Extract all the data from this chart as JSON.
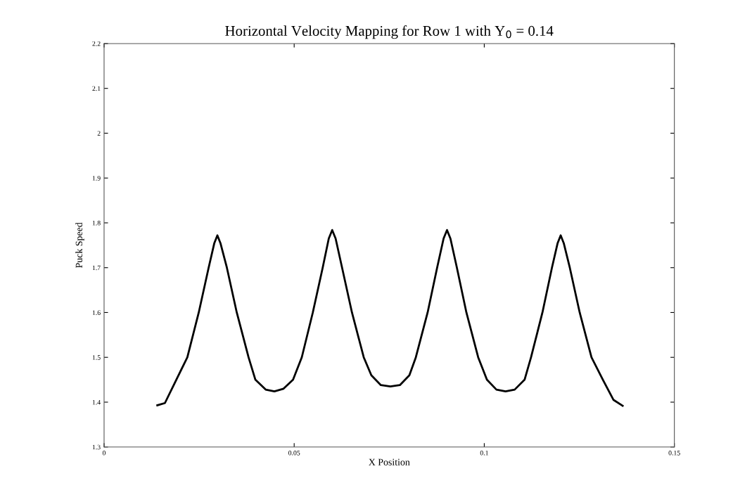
{
  "chart_data": {
    "type": "line",
    "title": "Horizontal Velocity Mapping for Row 1 with Y$_{0}$ = 0.14",
    "xlabel": "X Position",
    "ylabel": "Puck Speed",
    "xlim": [
      0,
      0.15
    ],
    "xticks": [
      0,
      0.05,
      0.1,
      0.15
    ],
    "ylim": [
      1.3,
      2.2
    ],
    "yticks": [
      1.3,
      1.4,
      1.5,
      1.6,
      1.7,
      1.8,
      1.9,
      2,
      2.1,
      2.2
    ],
    "grid": false,
    "marker": "none",
    "line_style": "solid",
    "series": [
      {
        "color": "#000000",
        "x": [
          0.014,
          0.016,
          0.019,
          0.0219,
          0.0249,
          0.0275,
          0.029,
          0.0298,
          0.0306,
          0.0323,
          0.0349,
          0.038,
          0.0398,
          0.0425,
          0.0448,
          0.0472,
          0.0497,
          0.052,
          0.0549,
          0.0575,
          0.0591,
          0.06,
          0.0609,
          0.0626,
          0.0652,
          0.0683,
          0.0703,
          0.0728,
          0.0753,
          0.0778,
          0.0803,
          0.082,
          0.0851,
          0.0876,
          0.0893,
          0.0902,
          0.0911,
          0.0928,
          0.0953,
          0.0984,
          0.1007,
          0.1032,
          0.1056,
          0.108,
          0.1106,
          0.1123,
          0.1153,
          0.1178,
          0.1193,
          0.1201,
          0.1209,
          0.1225,
          0.1251,
          0.1282,
          0.1312,
          0.134,
          0.1364
        ],
        "values": [
          1.393,
          1.398,
          1.45,
          1.5,
          1.6,
          1.7,
          1.755,
          1.772,
          1.755,
          1.7,
          1.6,
          1.5,
          1.45,
          1.428,
          1.424,
          1.43,
          1.45,
          1.5,
          1.6,
          1.7,
          1.765,
          1.784,
          1.765,
          1.7,
          1.6,
          1.5,
          1.46,
          1.438,
          1.435,
          1.438,
          1.46,
          1.5,
          1.6,
          1.7,
          1.765,
          1.784,
          1.765,
          1.7,
          1.6,
          1.5,
          1.45,
          1.428,
          1.424,
          1.428,
          1.45,
          1.5,
          1.6,
          1.7,
          1.755,
          1.772,
          1.755,
          1.7,
          1.6,
          1.5,
          1.45,
          1.405,
          1.392
        ]
      }
    ]
  }
}
